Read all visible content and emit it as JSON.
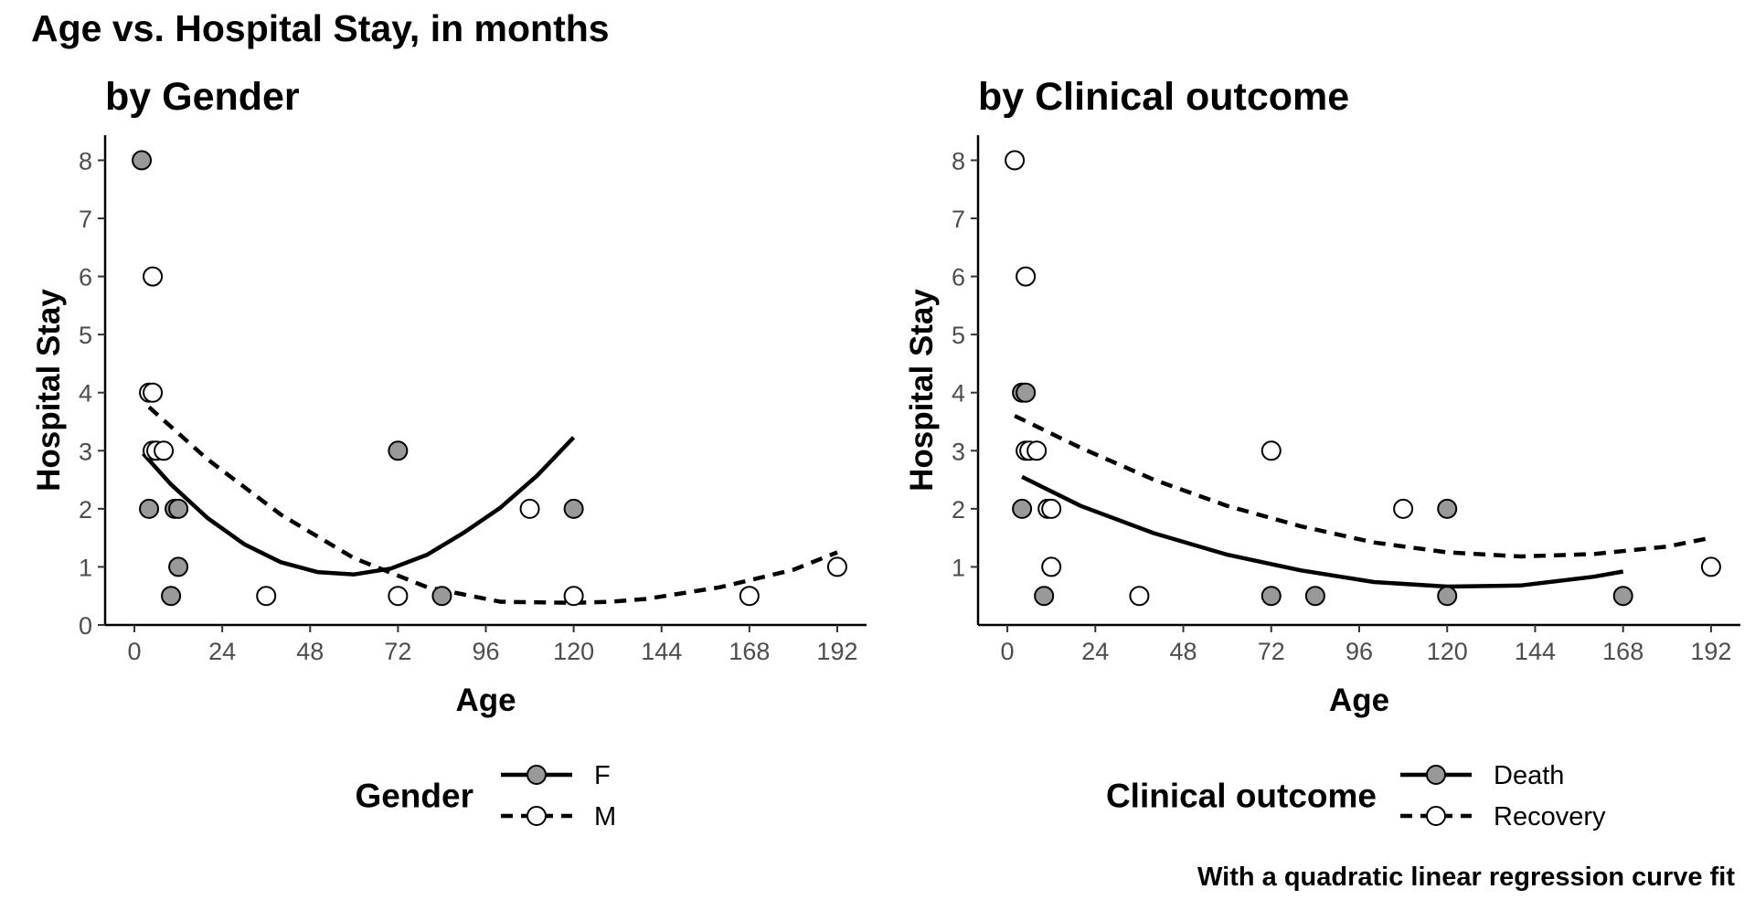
{
  "title": "Age vs. Hospital Stay, in months",
  "caption": "With a quadratic linear regression curve fit",
  "colors": {
    "filled": "#999999",
    "open": "#ffffff",
    "line": "#000000",
    "tick_text": "#4d4d4d"
  },
  "chart_data": [
    {
      "type": "scatter",
      "title": "by Gender",
      "xlabel": "Age",
      "ylabel": "Hospital Stay",
      "xlim": [
        -8,
        200
      ],
      "ylim": [
        0,
        8.4
      ],
      "x_ticks": [
        0,
        24,
        48,
        72,
        96,
        120,
        144,
        168,
        192
      ],
      "y_ticks": [
        0,
        1,
        2,
        3,
        4,
        5,
        6,
        7,
        8
      ],
      "grid": false,
      "legend": {
        "title": "Gender",
        "position": "bottom"
      },
      "series": [
        {
          "name": "F",
          "marker": "filled",
          "line": "solid",
          "points": [
            [
              2,
              8
            ],
            [
              4,
              2
            ],
            [
              10,
              0.5
            ],
            [
              11,
              2
            ],
            [
              12,
              1
            ],
            [
              12,
              2
            ],
            [
              72,
              3
            ],
            [
              84,
              0.5
            ],
            [
              120,
              2
            ]
          ],
          "fit": [
            [
              2.4,
              2.95
            ],
            [
              10,
              2.42
            ],
            [
              20,
              1.84
            ],
            [
              30,
              1.39
            ],
            [
              40,
              1.08
            ],
            [
              50,
              0.91
            ],
            [
              60,
              0.87
            ],
            [
              70,
              0.97
            ],
            [
              80,
              1.21
            ],
            [
              90,
              1.59
            ],
            [
              100,
              2.02
            ],
            [
              110,
              2.57
            ],
            [
              120,
              3.23
            ]
          ]
        },
        {
          "name": "M",
          "marker": "open",
          "line": "dashed",
          "points": [
            [
              4,
              4
            ],
            [
              5,
              3
            ],
            [
              5,
              4
            ],
            [
              5,
              6
            ],
            [
              6,
              3
            ],
            [
              8,
              3
            ],
            [
              36,
              0.5
            ],
            [
              72,
              0.5
            ],
            [
              108,
              2
            ],
            [
              120,
              0.5
            ],
            [
              168,
              0.5
            ],
            [
              192,
              1
            ]
          ],
          "fit": [
            [
              4,
              3.75
            ],
            [
              20,
              2.85
            ],
            [
              40,
              1.9
            ],
            [
              60,
              1.15
            ],
            [
              80,
              0.65
            ],
            [
              100,
              0.4
            ],
            [
              120,
              0.38
            ],
            [
              130,
              0.4
            ],
            [
              140,
              0.45
            ],
            [
              160,
              0.65
            ],
            [
              180,
              0.95
            ],
            [
              192,
              1.25
            ]
          ]
        }
      ]
    },
    {
      "type": "scatter",
      "title": "by Clinical outcome",
      "xlabel": "Age",
      "ylabel": "Hospital Stay",
      "xlim": [
        -8,
        200
      ],
      "ylim": [
        0,
        8.4
      ],
      "x_ticks": [
        0,
        24,
        48,
        72,
        96,
        120,
        144,
        168,
        192
      ],
      "y_ticks": [
        1,
        2,
        3,
        4,
        5,
        6,
        7,
        8
      ],
      "grid": false,
      "legend": {
        "title": "Clinical outcome",
        "position": "bottom"
      },
      "series": [
        {
          "name": "Death",
          "marker": "filled",
          "line": "solid",
          "points": [
            [
              4,
              2
            ],
            [
              4,
              4
            ],
            [
              5,
              4
            ],
            [
              10,
              0.5
            ],
            [
              72,
              0.5
            ],
            [
              84,
              0.5
            ],
            [
              120,
              2
            ],
            [
              120,
              0.5
            ],
            [
              168,
              0.5
            ]
          ],
          "fit": [
            [
              4,
              2.55
            ],
            [
              20,
              2.05
            ],
            [
              40,
              1.58
            ],
            [
              60,
              1.21
            ],
            [
              80,
              0.94
            ],
            [
              100,
              0.74
            ],
            [
              120,
              0.66
            ],
            [
              140,
              0.68
            ],
            [
              160,
              0.83
            ],
            [
              168,
              0.92
            ]
          ]
        },
        {
          "name": "Recovery",
          "marker": "open",
          "line": "dashed",
          "points": [
            [
              2,
              8
            ],
            [
              5,
              3
            ],
            [
              5,
              6
            ],
            [
              6,
              3
            ],
            [
              8,
              3
            ],
            [
              11,
              2
            ],
            [
              12,
              2
            ],
            [
              12,
              1
            ],
            [
              36,
              0.5
            ],
            [
              72,
              3
            ],
            [
              108,
              2
            ],
            [
              192,
              1
            ]
          ],
          "fit": [
            [
              2,
              3.6
            ],
            [
              20,
              3.05
            ],
            [
              40,
              2.5
            ],
            [
              60,
              2.05
            ],
            [
              80,
              1.7
            ],
            [
              100,
              1.42
            ],
            [
              120,
              1.25
            ],
            [
              140,
              1.18
            ],
            [
              160,
              1.22
            ],
            [
              180,
              1.35
            ],
            [
              192,
              1.5
            ]
          ]
        }
      ]
    }
  ]
}
